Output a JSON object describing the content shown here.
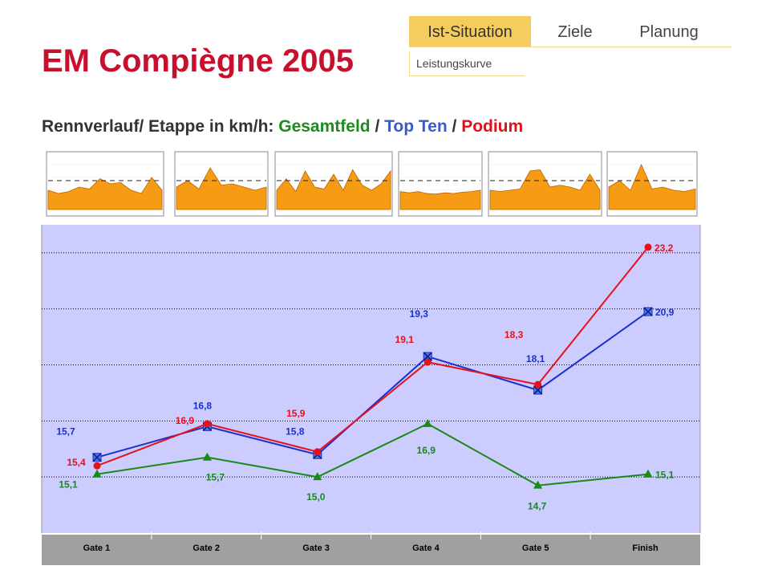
{
  "nav": {
    "tabs": [
      {
        "label": "Ist-Situation",
        "active": true
      },
      {
        "label": "Ziele",
        "active": false
      },
      {
        "label": "Planung",
        "active": false
      }
    ],
    "subtab": "Leistungskurve"
  },
  "page": {
    "title": "EM Compiègne 2005",
    "subtitle_prefix": "Rennverlauf/ Etappe in km/h: ",
    "subtitle_gesamt": "Gesamtfeld",
    "sep1": " / ",
    "subtitle_topten": "Top Ten",
    "sep2": " / ",
    "subtitle_podium": "Podium"
  },
  "colors": {
    "accent": "#c8102e",
    "tab_active": "#f5cd5f",
    "plot_bg": "#ccccff",
    "axis_bar": "#a0a0a0",
    "thumb_fill": "#f59c14",
    "series": {
      "Podium": "#e8101a",
      "Top Ten": "#1a30d0",
      "Gesamtfeld": "#178a17"
    }
  },
  "thumbnails": [
    [
      3.0,
      2.5,
      2.8,
      3.5,
      3.2,
      4.8,
      4.0,
      4.2,
      3.0,
      2.5,
      5.0,
      3.0
    ],
    [
      3.5,
      4.5,
      3.2,
      6.5,
      3.8,
      4.0,
      3.5,
      3.0,
      3.5
    ],
    [
      3.0,
      4.8,
      2.8,
      6.0,
      3.5,
      3.2,
      5.5,
      3.0,
      6.2,
      3.8,
      3.0,
      4.0,
      6.0
    ],
    [
      2.8,
      2.6,
      2.8,
      2.5,
      2.4,
      2.6,
      2.5,
      2.7,
      2.8,
      3.0
    ],
    [
      3.0,
      2.8,
      3.0,
      3.2,
      6.0,
      6.2,
      3.5,
      3.8,
      3.5,
      3.0,
      5.5,
      3.0
    ],
    [
      3.5,
      4.5,
      3.0,
      7.0,
      3.2,
      3.5,
      3.0,
      2.8,
      3.2
    ]
  ],
  "chart_data": {
    "type": "line",
    "categories": [
      "Gate 1",
      "Gate 2",
      "Gate 3",
      "Gate 4",
      "Gate 5",
      "Finish"
    ],
    "ylim": [
      13,
      24
    ],
    "grid": true,
    "series": [
      {
        "name": "Podium",
        "values": [
          15.4,
          16.9,
          15.9,
          19.1,
          18.3,
          23.2
        ],
        "labels": [
          "15,4",
          "16,9",
          "15,9",
          "19,1",
          "18,3",
          "23,2"
        ]
      },
      {
        "name": "Top Ten",
        "values": [
          15.7,
          16.8,
          15.8,
          19.3,
          18.1,
          20.9
        ],
        "labels": [
          "15,7",
          "16,8",
          "15,8",
          "19,3",
          "18,1",
          "20,9"
        ]
      },
      {
        "name": "Gesamtfeld",
        "values": [
          15.1,
          15.7,
          15.0,
          16.9,
          14.7,
          15.1
        ],
        "labels": [
          "15,1",
          "15,7",
          "15,0",
          "16,9",
          "14,7",
          "15,1"
        ]
      }
    ]
  }
}
